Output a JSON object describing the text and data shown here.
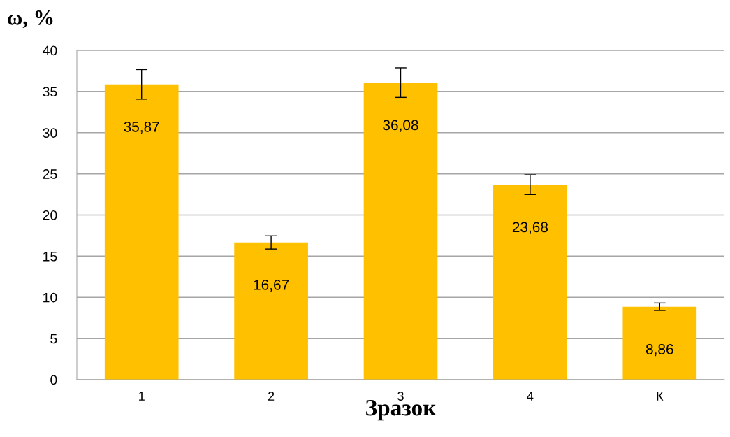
{
  "chart_data": {
    "type": "bar",
    "ylabel": "ω, %",
    "xlabel": "Зразок",
    "categories": [
      "1",
      "2",
      "3",
      "4",
      "К"
    ],
    "values": [
      35.87,
      16.67,
      36.08,
      23.68,
      8.86
    ],
    "errors": [
      1.8,
      0.8,
      1.8,
      1.2,
      0.45
    ],
    "value_labels": [
      "35,87",
      "16,67",
      "36,08",
      "23,68",
      "8,86"
    ],
    "color": "#ffc000",
    "ylim": [
      0,
      40
    ],
    "yticks": [
      0,
      5,
      10,
      15,
      20,
      25,
      30,
      35,
      40
    ],
    "grid": "y",
    "legend": false
  }
}
